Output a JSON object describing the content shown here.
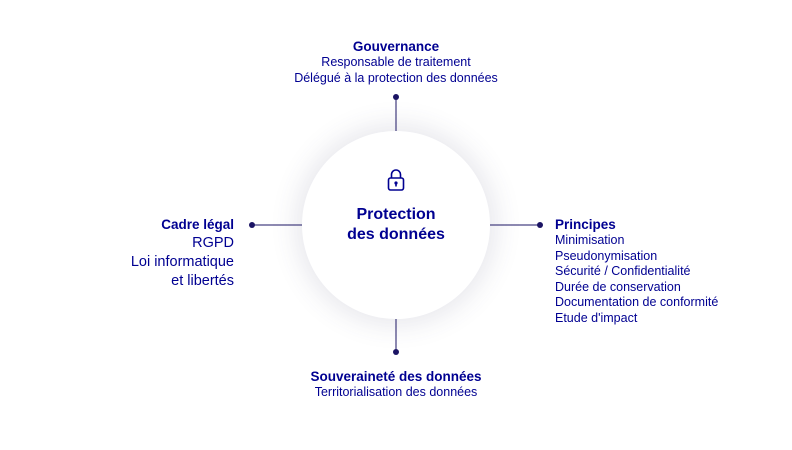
{
  "center": {
    "icon": "lock-icon",
    "title_line1": "Protection",
    "title_line2": "des données"
  },
  "top": {
    "heading": "Gouvernance",
    "items": [
      "Responsable de traitement",
      "Délégué à la protection des données"
    ]
  },
  "left": {
    "heading": "Cadre légal",
    "items": [
      "RGPD",
      "Loi informatique",
      "et libertés"
    ]
  },
  "right": {
    "heading": "Principes",
    "items": [
      "Minimisation",
      "Pseudonymisation",
      "Sécurité / Confidentialité",
      "Durée de conservation",
      "Documentation de conformité",
      "Etude d'impact"
    ]
  },
  "bottom": {
    "heading": "Souveraineté des données",
    "items": [
      "Territorialisation des données"
    ]
  },
  "colors": {
    "primary": "#000091",
    "line": "#1b1464"
  }
}
